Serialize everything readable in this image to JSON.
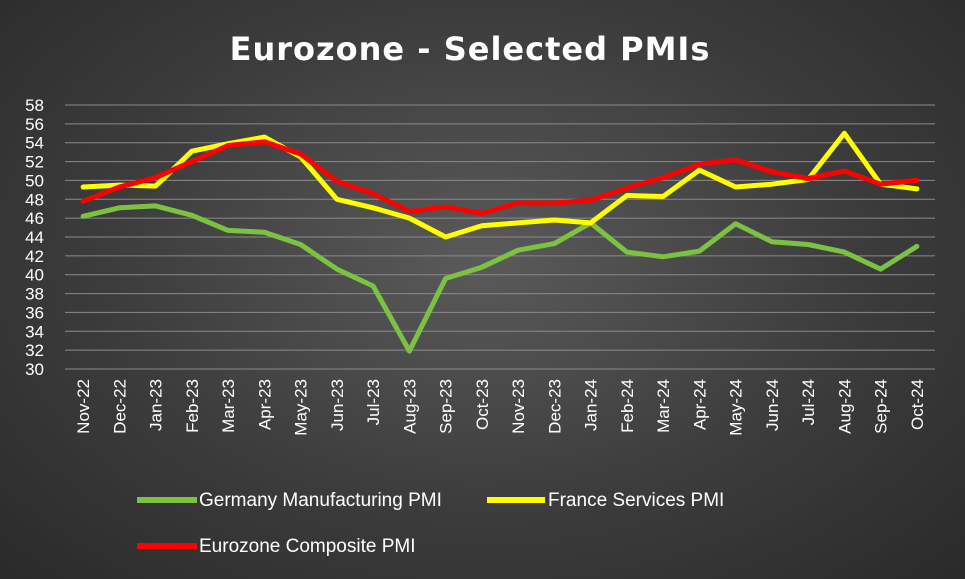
{
  "chart_data": {
    "type": "line",
    "title": "Eurozone - Selected PMIs",
    "xlabel": "",
    "ylabel": "",
    "ylim": [
      30,
      58
    ],
    "yticks": [
      30,
      32,
      34,
      36,
      38,
      40,
      42,
      44,
      46,
      48,
      50,
      52,
      54,
      56,
      58
    ],
    "grid": true,
    "legend": "bottom",
    "categories": [
      "Nov-22",
      "Dec-22",
      "Jan-23",
      "Feb-23",
      "Mar-23",
      "Apr-23",
      "May-23",
      "Jun-23",
      "Jul-23",
      "Aug-23",
      "Sep-23",
      "Oct-23",
      "Nov-23",
      "Dec-23",
      "Jan-24",
      "Feb-24",
      "Mar-24",
      "Apr-24",
      "May-24",
      "Jun-24",
      "Jul-24",
      "Aug-24",
      "Sep-24",
      "Oct-24"
    ],
    "series": [
      {
        "name": "Germany Manufacturing PMI",
        "color": "#7cc242",
        "values": [
          46.2,
          47.1,
          47.3,
          46.3,
          44.7,
          44.5,
          43.2,
          40.6,
          38.8,
          31.9,
          39.6,
          40.8,
          42.6,
          43.3,
          45.5,
          42.4,
          41.9,
          42.5,
          45.4,
          43.5,
          43.2,
          42.4,
          40.6,
          43.0
        ]
      },
      {
        "name": "France Services PMI",
        "color": "#ffff00",
        "values": [
          49.3,
          49.5,
          49.4,
          53.1,
          53.9,
          54.6,
          52.5,
          48.0,
          47.1,
          46.0,
          44.0,
          45.2,
          45.5,
          45.8,
          45.5,
          48.4,
          48.3,
          51.1,
          49.3,
          49.6,
          50.1,
          55.0,
          49.6,
          49.1
        ]
      },
      {
        "name": "Eurozone Composite PMI",
        "color": "#ff0000",
        "values": [
          47.8,
          49.3,
          50.3,
          52.0,
          53.7,
          54.1,
          52.8,
          49.9,
          48.6,
          46.7,
          47.2,
          46.5,
          47.6,
          47.6,
          47.9,
          49.2,
          50.3,
          51.7,
          52.2,
          50.9,
          50.2,
          51.0,
          49.6,
          50.0
        ]
      }
    ]
  }
}
